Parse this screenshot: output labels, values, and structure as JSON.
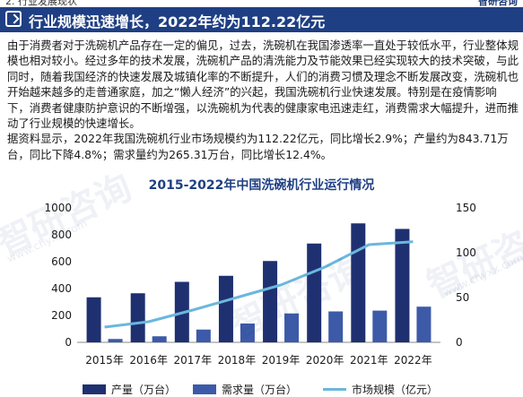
{
  "header": {
    "section_label": "2. 行业发展现状",
    "title": "行业规模迅速增长，2022年约为112.22亿元",
    "logo_text": "智研咨询"
  },
  "paragraph": [
    "由于消费者对于洗碗机产品存在一定的偏见，过去，洗碗机在我国渗透率一直处于较低水平，行业整体规模也相对较小。经过多年的技术发展，洗碗机产品的清洗能力及节能效果已经实现较大的技术突破，与此同时，随着我国经济的快速发展及城镇化率的不断提升，人们的消费习惯及理念不断发展改变，洗碗机也开始越来越多的走普通家庭，加之“懒人经济”的兴起，我国洗碗机行业快速发展。特别是在疫情影响下，消费者健康防护意识的不断增强，以洗碗机为代表的健康家电迅速走红，消费需求大幅提升，进而推动了行业规模的快速增长。",
    "据资料显示，2022年我国洗碗机行业市场规模约为112.22亿元，同比增长2.9%；产量约为843.71万台，同比下降4.8%；需求量约为265.31万台，同比增长12.4%。"
  ],
  "watermark": {
    "text": "智研咨询",
    "url": "www.chyxx.com"
  },
  "chart_data": {
    "type": "bar",
    "title": "2015-2022年中国洗碗机行业运行情况",
    "categories": [
      "2015年",
      "2016年",
      "2017年",
      "2018年",
      "2019年",
      "2020年",
      "2021年",
      "2022年"
    ],
    "series": [
      {
        "name": "产量（万台）",
        "type": "bar",
        "axis": "left",
        "color": "#1f3070",
        "values": [
          335,
          365,
          450,
          495,
          605,
          735,
          885,
          843.71
        ]
      },
      {
        "name": "需求量（万台）",
        "type": "bar",
        "axis": "left",
        "color": "#3d5aa8",
        "values": [
          25,
          45,
          95,
          140,
          215,
          230,
          236,
          265.31
        ]
      },
      {
        "name": "市场规模（亿元）",
        "type": "line",
        "axis": "right",
        "color": "#6bb7dd",
        "values": [
          17,
          23,
          36,
          50,
          64,
          84,
          109,
          112.22
        ]
      }
    ],
    "left_axis": {
      "min": 0,
      "max": 1000,
      "ticks": [
        0,
        200,
        400,
        600,
        800,
        1000
      ]
    },
    "right_axis": {
      "min": 0,
      "max": 150,
      "ticks": [
        0,
        50,
        100,
        150
      ]
    },
    "legend_position": "bottom",
    "grid": false
  }
}
